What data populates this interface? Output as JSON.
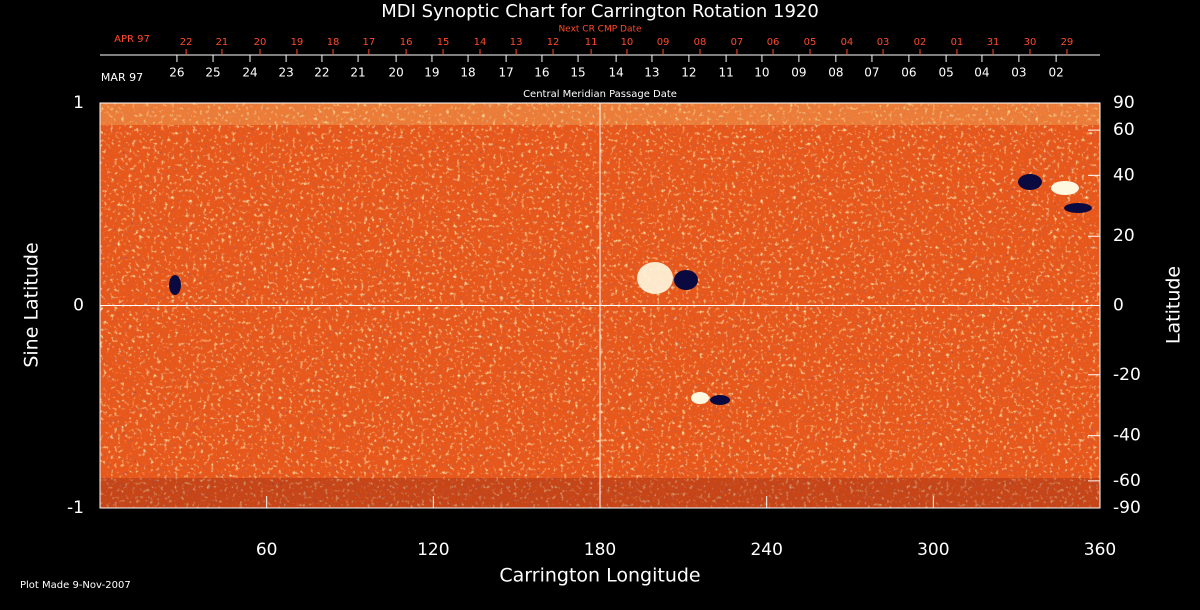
{
  "chart_data": {
    "type": "synoptic-map",
    "title": "MDI Synoptic Chart for Carrington Rotation 1920",
    "top_axis_label": "Next CR CMP Date",
    "bottom_axis_label": "Central Meridian Passage Date",
    "next_month": "APR 97",
    "next_dates": [
      {
        "value": 31.0,
        "label": "22"
      },
      {
        "value": 43.9,
        "label": "21"
      },
      {
        "value": 57.6,
        "label": "20"
      },
      {
        "value": 70.9,
        "label": "19"
      },
      {
        "value": 83.9,
        "label": "18"
      },
      {
        "value": 96.8,
        "label": "17"
      },
      {
        "value": 110.2,
        "label": "16"
      },
      {
        "value": 123.5,
        "label": "15"
      },
      {
        "value": 136.8,
        "label": "14"
      },
      {
        "value": 149.8,
        "label": "13"
      },
      {
        "value": 163.1,
        "label": "12"
      },
      {
        "value": 176.8,
        "label": "11"
      },
      {
        "value": 189.7,
        "label": "10"
      },
      {
        "value": 202.7,
        "label": "09"
      },
      {
        "value": 216.0,
        "label": "08"
      },
      {
        "value": 229.3,
        "label": "07"
      },
      {
        "value": 242.3,
        "label": "06"
      },
      {
        "value": 255.6,
        "label": "05"
      },
      {
        "value": 268.9,
        "label": "04"
      },
      {
        "value": 281.9,
        "label": "03"
      },
      {
        "value": 295.2,
        "label": "02"
      },
      {
        "value": 308.5,
        "label": "01"
      },
      {
        "value": 321.5,
        "label": "31"
      },
      {
        "value": 334.8,
        "label": "30"
      },
      {
        "value": 348.1,
        "label": "29"
      }
    ],
    "month": "MAR 97",
    "dates": [
      {
        "value": 27.7,
        "label": "26"
      },
      {
        "value": 40.7,
        "label": "25"
      },
      {
        "value": 54.0,
        "label": "24"
      },
      {
        "value": 67.0,
        "label": "23"
      },
      {
        "value": 79.9,
        "label": "22"
      },
      {
        "value": 92.9,
        "label": "21"
      },
      {
        "value": 106.6,
        "label": "20"
      },
      {
        "value": 119.5,
        "label": "19"
      },
      {
        "value": 132.5,
        "label": "18"
      },
      {
        "value": 146.2,
        "label": "17"
      },
      {
        "value": 159.1,
        "label": "16"
      },
      {
        "value": 172.1,
        "label": "15"
      },
      {
        "value": 185.8,
        "label": "14"
      },
      {
        "value": 198.7,
        "label": "13"
      },
      {
        "value": 212.0,
        "label": "12"
      },
      {
        "value": 225.4,
        "label": "11"
      },
      {
        "value": 238.3,
        "label": "10"
      },
      {
        "value": 251.6,
        "label": "09"
      },
      {
        "value": 264.9,
        "label": "08"
      },
      {
        "value": 277.9,
        "label": "07"
      },
      {
        "value": 291.2,
        "label": "06"
      },
      {
        "value": 304.6,
        "label": "05"
      },
      {
        "value": 317.5,
        "label": "04"
      },
      {
        "value": 330.8,
        "label": "03"
      },
      {
        "value": 344.2,
        "label": "02"
      }
    ],
    "x_label": "Carrington Longitude",
    "xlim": [
      0,
      360
    ],
    "xticks": [
      60,
      120,
      180,
      240,
      300,
      360
    ],
    "y_label": "Sine Latitude",
    "ylim": [
      -1,
      1
    ],
    "yticks": [
      1,
      0,
      -1
    ],
    "y2_label": "Latitude",
    "y2lim": [
      -90,
      90
    ],
    "y2ticks": [
      90,
      60,
      40,
      20,
      0,
      -20,
      -40,
      -60,
      -90
    ],
    "footer": "Plot Made  9-Nov-2007"
  }
}
